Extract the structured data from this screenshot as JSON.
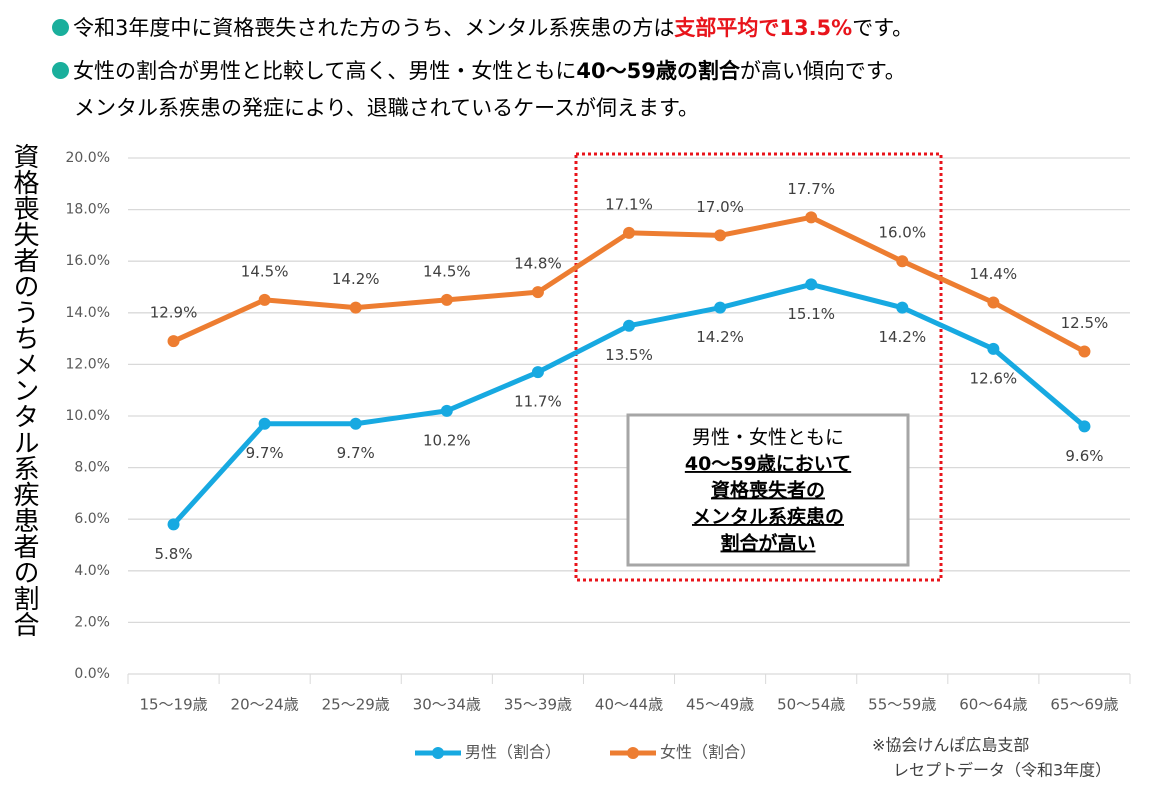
{
  "header": {
    "line1": [
      "令和3年度中に資格喪失された方のうち、メンタル系疾患の方は",
      "支部平均で13.5%",
      "です。"
    ],
    "line2": [
      "女性の割合が男性と比較して高く、男性・女性ともに",
      "40～59歳の割合",
      "が高い傾向です。"
    ],
    "line3": "メンタル系疾患の発症により、退職されているケースが伺えます。"
  },
  "chart_data": {
    "type": "line",
    "y_label": "資格喪失者のうちメンタル系疾患者の割合",
    "categories": [
      "15～19歳",
      "20～24歳",
      "25～29歳",
      "30～34歳",
      "35～39歳",
      "40～44歳",
      "45～49歳",
      "50～54歳",
      "55～59歳",
      "60～64歳",
      "65～69歳"
    ],
    "series": [
      {
        "name": "男性（割合）",
        "color": "#17a9e1",
        "label_position": "below",
        "values": [
          5.8,
          9.7,
          9.7,
          10.2,
          11.7,
          13.5,
          14.2,
          15.1,
          14.2,
          12.6,
          9.6
        ],
        "value_labels": [
          "5.8%",
          "9.7%",
          "9.7%",
          "10.2%",
          "11.7%",
          "13.5%",
          "14.2%",
          "15.1%",
          "14.2%",
          "12.6%",
          "9.6%"
        ]
      },
      {
        "name": "女性（割合）",
        "color": "#ed7d31",
        "label_position": "above",
        "values": [
          12.9,
          14.5,
          14.2,
          14.5,
          14.8,
          17.1,
          17.0,
          17.7,
          16.0,
          14.4,
          12.5
        ],
        "value_labels": [
          "12.9%",
          "14.5%",
          "14.2%",
          "14.5%",
          "14.8%",
          "17.1%",
          "17.0%",
          "17.7%",
          "16.0%",
          "14.4%",
          "12.5%"
        ]
      }
    ],
    "ylim": [
      0,
      20
    ],
    "yticks": [
      {
        "value": 0,
        "label": "0.0%"
      },
      {
        "value": 2,
        "label": "2.0%"
      },
      {
        "value": 4,
        "label": "4.0%"
      },
      {
        "value": 6,
        "label": "6.0%"
      },
      {
        "value": 8,
        "label": "8.0%"
      },
      {
        "value": 10,
        "label": "10.0%"
      },
      {
        "value": 12,
        "label": "12.0%"
      },
      {
        "value": 14,
        "label": "14.0%"
      },
      {
        "value": 16,
        "label": "16.0%"
      },
      {
        "value": 18,
        "label": "18.0%"
      },
      {
        "value": 20,
        "label": "20.0%"
      }
    ],
    "grid": true,
    "annotation": [
      "男性・女性ともに",
      "40～59歳において",
      "資格喪失者の",
      "メンタル系疾患の",
      "割合が高い"
    ],
    "source": [
      "※協会けんぽ広島支部",
      "レセプトデータ（令和3年度）"
    ]
  }
}
